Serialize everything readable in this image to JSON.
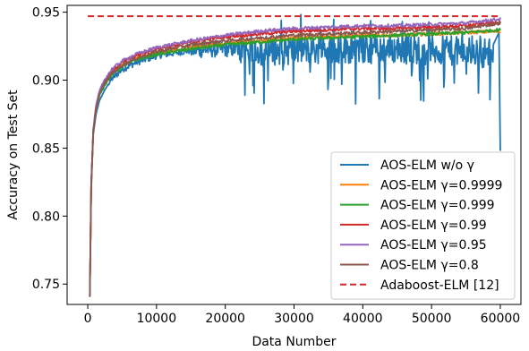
{
  "chart_data": {
    "type": "line",
    "xlabel": "Data Number",
    "ylabel": "Accuracy on Test Set",
    "xlim": [
      -3000,
      63000
    ],
    "ylim": [
      0.735,
      0.955
    ],
    "x_ticks": [
      0,
      10000,
      20000,
      30000,
      40000,
      50000,
      60000
    ],
    "x_tick_labels": [
      "0",
      "10000",
      "20000",
      "30000",
      "40000",
      "50000",
      "60000"
    ],
    "y_ticks": [
      0.75,
      0.8,
      0.85,
      0.9,
      0.95
    ],
    "y_tick_labels": [
      "0.75",
      "0.80",
      "0.85",
      "0.90",
      "0.95"
    ],
    "grid": false,
    "legend_position": "lower-right",
    "series": [
      {
        "name": "AOS-ELM w/o γ",
        "color": "#1f77b4",
        "style": "solid",
        "noisy": true,
        "x": [
          300,
          500,
          800,
          1200,
          1700,
          2500,
          3500,
          5000,
          7000,
          10000,
          15000,
          20000,
          25000,
          30000,
          35000,
          40000,
          45000,
          50000,
          55000,
          59000,
          59800,
          60000
        ],
        "y": [
          0.741,
          0.82,
          0.86,
          0.875,
          0.885,
          0.893,
          0.901,
          0.908,
          0.913,
          0.918,
          0.922,
          0.923,
          0.922,
          0.922,
          0.923,
          0.923,
          0.923,
          0.922,
          0.921,
          0.92,
          0.935,
          0.848
        ]
      },
      {
        "name": "AOS-ELM γ=0.9999",
        "color": "#ff7f0e",
        "style": "solid",
        "x": [
          300,
          500,
          800,
          1200,
          1700,
          2500,
          3500,
          5000,
          7000,
          10000,
          15000,
          20000,
          25000,
          30000,
          35000,
          40000,
          45000,
          50000,
          55000,
          60000
        ],
        "y": [
          0.741,
          0.822,
          0.862,
          0.878,
          0.889,
          0.898,
          0.905,
          0.911,
          0.916,
          0.92,
          0.924,
          0.927,
          0.929,
          0.931,
          0.932,
          0.933,
          0.933,
          0.934,
          0.935,
          0.936
        ]
      },
      {
        "name": "AOS-ELM γ=0.999",
        "color": "#2ca02c",
        "style": "solid",
        "x": [
          300,
          500,
          800,
          1200,
          1700,
          2500,
          3500,
          5000,
          7000,
          10000,
          15000,
          20000,
          25000,
          30000,
          35000,
          40000,
          45000,
          50000,
          55000,
          60000
        ],
        "y": [
          0.741,
          0.822,
          0.862,
          0.878,
          0.889,
          0.897,
          0.904,
          0.91,
          0.915,
          0.919,
          0.923,
          0.926,
          0.928,
          0.93,
          0.931,
          0.932,
          0.933,
          0.934,
          0.935,
          0.937
        ]
      },
      {
        "name": "AOS-ELM γ=0.99",
        "color": "#d62728",
        "style": "solid",
        "x": [
          300,
          500,
          800,
          1200,
          1700,
          2500,
          3500,
          5000,
          7000,
          10000,
          15000,
          20000,
          25000,
          30000,
          35000,
          40000,
          45000,
          50000,
          55000,
          60000
        ],
        "y": [
          0.741,
          0.823,
          0.863,
          0.88,
          0.891,
          0.9,
          0.907,
          0.913,
          0.918,
          0.923,
          0.928,
          0.932,
          0.934,
          0.936,
          0.937,
          0.938,
          0.938,
          0.939,
          0.94,
          0.943
        ]
      },
      {
        "name": "AOS-ELM γ=0.95",
        "color": "#9467bd",
        "style": "solid",
        "x": [
          300,
          500,
          800,
          1200,
          1700,
          2500,
          3500,
          5000,
          7000,
          10000,
          15000,
          20000,
          25000,
          30000,
          35000,
          40000,
          45000,
          50000,
          55000,
          60000
        ],
        "y": [
          0.741,
          0.823,
          0.864,
          0.881,
          0.892,
          0.901,
          0.908,
          0.914,
          0.919,
          0.924,
          0.929,
          0.933,
          0.936,
          0.938,
          0.939,
          0.94,
          0.94,
          0.941,
          0.942,
          0.945
        ]
      },
      {
        "name": "AOS-ELM γ=0.8",
        "color": "#8c564b",
        "style": "solid",
        "x": [
          300,
          500,
          800,
          1200,
          1700,
          2500,
          3500,
          5000,
          7000,
          10000,
          15000,
          20000,
          25000,
          30000,
          35000,
          40000,
          45000,
          50000,
          55000,
          60000
        ],
        "y": [
          0.741,
          0.822,
          0.862,
          0.879,
          0.89,
          0.898,
          0.905,
          0.911,
          0.916,
          0.921,
          0.926,
          0.929,
          0.931,
          0.933,
          0.934,
          0.935,
          0.936,
          0.937,
          0.938,
          0.942
        ]
      },
      {
        "name": "Adaboost-ELM [12]",
        "color": "#d62728",
        "style": "dashed",
        "x": [
          0,
          60000
        ],
        "y": [
          0.947,
          0.947
        ]
      }
    ]
  }
}
